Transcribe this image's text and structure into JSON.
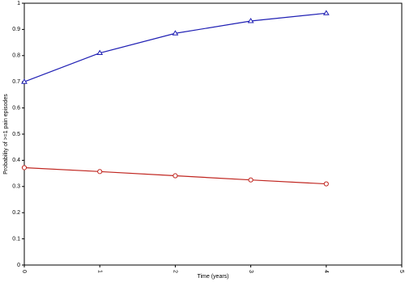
{
  "chart_data": {
    "type": "line",
    "xlabel": "Time (years)",
    "ylabel": "Probability of >=1 pain episodes",
    "x": [
      0,
      1,
      2,
      3,
      4
    ],
    "xlim": [
      0,
      5
    ],
    "xticks": [
      0,
      1,
      2,
      3,
      4,
      5
    ],
    "ylim": [
      0,
      1
    ],
    "yticks": [
      0,
      0.1,
      0.2,
      0.3,
      0.4,
      0.5,
      0.6,
      0.7,
      0.8,
      0.9,
      1
    ],
    "grid": false,
    "series": [
      {
        "color": "#1f1fb4",
        "marker": "triangle",
        "values": [
          0.7,
          0.81,
          0.885,
          0.932,
          0.962
        ]
      },
      {
        "color": "#c0251f",
        "marker": "circle",
        "values": [
          0.372,
          0.357,
          0.341,
          0.325,
          0.31
        ]
      }
    ]
  }
}
